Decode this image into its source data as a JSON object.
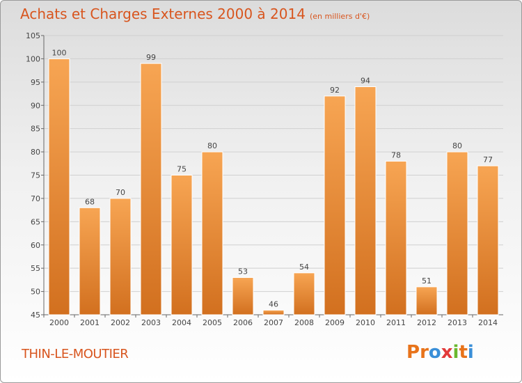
{
  "title": "Achats et Charges Externes 2000 à 2014",
  "subtitle": "(en milliers d'€)",
  "commune": "THIN-LE-MOUTIER",
  "logo": {
    "text": "Proxiti",
    "letters": [
      {
        "ch": "P",
        "color": "#e8731a"
      },
      {
        "ch": "r",
        "color": "#e8731a"
      },
      {
        "ch": "o",
        "color": "#3a8fd8"
      },
      {
        "ch": "x",
        "color": "#e23a3a"
      },
      {
        "ch": "i",
        "color": "#6ab82f"
      },
      {
        "ch": "t",
        "color": "#e8731a"
      },
      {
        "ch": "i",
        "color": "#3a8fd8"
      }
    ]
  },
  "colors": {
    "bar_light": "#f7a553",
    "bar_dark": "#d2701f",
    "title": "#d8551e"
  },
  "chart_data": {
    "type": "bar",
    "categories": [
      "2000",
      "2001",
      "2002",
      "2003",
      "2004",
      "2005",
      "2006",
      "2007",
      "2008",
      "2009",
      "2010",
      "2011",
      "2012",
      "2013",
      "2014"
    ],
    "values": [
      100,
      68,
      70,
      99,
      75,
      80,
      53,
      46,
      54,
      92,
      94,
      78,
      51,
      80,
      77
    ],
    "ylim": [
      45,
      105
    ],
    "yticks": [
      45,
      50,
      55,
      60,
      65,
      70,
      75,
      80,
      85,
      90,
      95,
      100,
      105
    ],
    "grid": true,
    "legend": "none"
  }
}
